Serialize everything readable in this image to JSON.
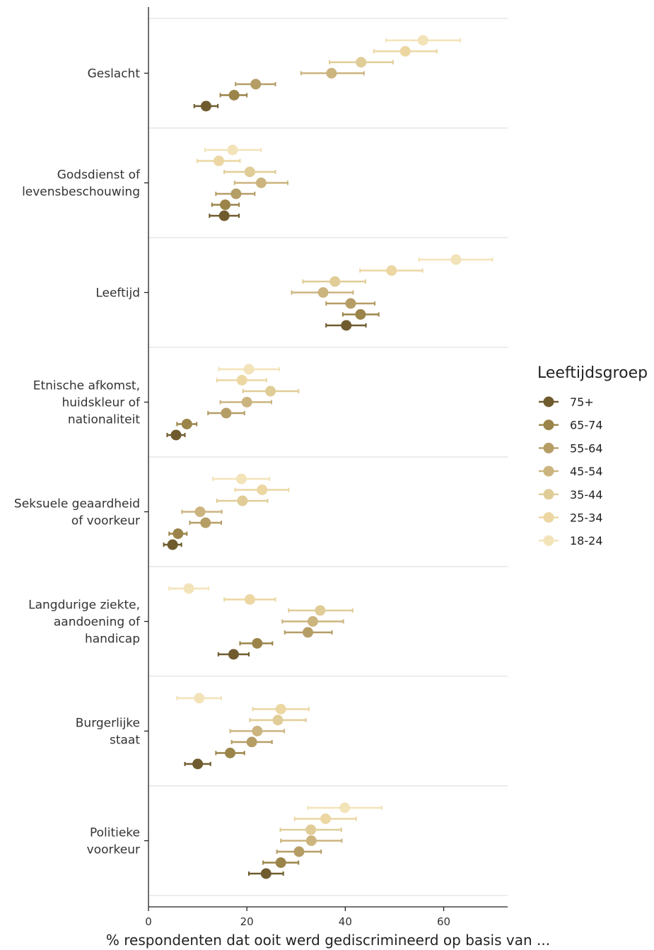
{
  "chart_data": {
    "type": "scatter",
    "subtype": "dot-with-error-bars",
    "orientation": "horizontal",
    "xlabel": "% respondenten dat ooit werd gediscrimineerd op basis van ...",
    "xlim": [
      0,
      73
    ],
    "xticks": [
      0,
      20,
      40,
      60
    ],
    "grid": "horizontal-separators",
    "legend": {
      "title": "Leeftijdsgroep",
      "position": "right"
    },
    "colors": {
      "18-24": "#f3e3b8",
      "25-34": "#ecd7a3",
      "35-44": "#e0cc96",
      "45-54": "#ccb47f",
      "55-64": "#b59d66",
      "65-74": "#9b8449",
      "75+": "#6f5b2e"
    },
    "groups": [
      "18-24",
      "25-34",
      "35-44",
      "45-54",
      "55-64",
      "65-74",
      "75+"
    ],
    "legend_order": [
      "75+",
      "65-74",
      "55-64",
      "45-54",
      "35-44",
      "25-34",
      "18-24"
    ],
    "categories": [
      {
        "label": [
          "Geslacht"
        ],
        "values": [
          55.8,
          52.2,
          43.2,
          37.2,
          21.8,
          17.4,
          11.7
        ],
        "lower": [
          48.3,
          45.8,
          36.8,
          31.0,
          17.7,
          14.6,
          9.3
        ],
        "upper": [
          63.4,
          58.6,
          49.7,
          43.8,
          25.8,
          20.0,
          14.1
        ]
      },
      {
        "label": [
          "Godsdienst of",
          "levensbeschouwing"
        ],
        "values": [
          17.1,
          14.3,
          20.6,
          22.9,
          17.8,
          15.6,
          15.4
        ],
        "lower": [
          11.5,
          9.9,
          15.4,
          17.5,
          13.7,
          12.9,
          12.4
        ],
        "upper": [
          22.9,
          18.6,
          25.8,
          28.3,
          21.6,
          18.4,
          18.4
        ]
      },
      {
        "label": [
          "Leeftijd"
        ],
        "values": [
          62.5,
          49.4,
          37.9,
          35.5,
          41.1,
          43.1,
          40.2
        ],
        "lower": [
          55.0,
          43.0,
          31.4,
          29.1,
          36.1,
          39.5,
          36.1
        ],
        "upper": [
          69.9,
          55.7,
          44.1,
          41.6,
          46.0,
          46.8,
          44.2
        ]
      },
      {
        "label": [
          "Etnische afkomst,",
          "huidskleur of",
          "nationaliteit"
        ],
        "values": [
          20.4,
          19.0,
          24.8,
          20.0,
          15.8,
          7.8,
          5.6
        ],
        "lower": [
          14.3,
          13.9,
          19.2,
          14.6,
          12.1,
          5.8,
          3.8
        ],
        "upper": [
          26.6,
          24.0,
          30.5,
          25.0,
          19.5,
          9.8,
          7.4
        ]
      },
      {
        "label": [
          "Seksuele geaardheid",
          "of voorkeur"
        ],
        "values": [
          18.9,
          23.1,
          19.1,
          10.5,
          11.6,
          6.0,
          4.9
        ],
        "lower": [
          13.1,
          17.6,
          13.9,
          6.8,
          8.4,
          4.2,
          3.1
        ],
        "upper": [
          24.6,
          28.5,
          24.2,
          14.9,
          14.8,
          7.8,
          6.7
        ]
      },
      {
        "label": [
          "Langdurige ziekte,",
          "aandoening of",
          "handicap"
        ],
        "values": [
          8.2,
          20.6,
          34.9,
          33.4,
          32.4,
          22.1,
          17.3
        ],
        "lower": [
          4.2,
          15.4,
          28.5,
          27.2,
          27.7,
          18.6,
          14.2
        ],
        "upper": [
          12.2,
          25.8,
          41.5,
          39.6,
          37.3,
          25.2,
          20.4
        ]
      },
      {
        "label": [
          "Burgerlijke",
          "staat"
        ],
        "values": [
          10.3,
          26.9,
          26.3,
          22.1,
          21.0,
          16.6,
          10.0
        ],
        "lower": [
          5.8,
          21.2,
          20.6,
          16.6,
          16.9,
          13.7,
          7.4
        ],
        "upper": [
          14.8,
          32.6,
          32.0,
          27.6,
          25.1,
          19.5,
          12.6
        ]
      },
      {
        "label": [
          "Politieke",
          "voorkeur"
        ],
        "values": [
          39.9,
          36.0,
          33.0,
          33.1,
          30.6,
          26.9,
          23.9
        ],
        "lower": [
          32.4,
          29.7,
          26.8,
          26.9,
          26.1,
          23.3,
          20.4
        ],
        "upper": [
          47.4,
          42.2,
          39.2,
          39.3,
          35.1,
          30.5,
          27.4
        ]
      }
    ]
  }
}
